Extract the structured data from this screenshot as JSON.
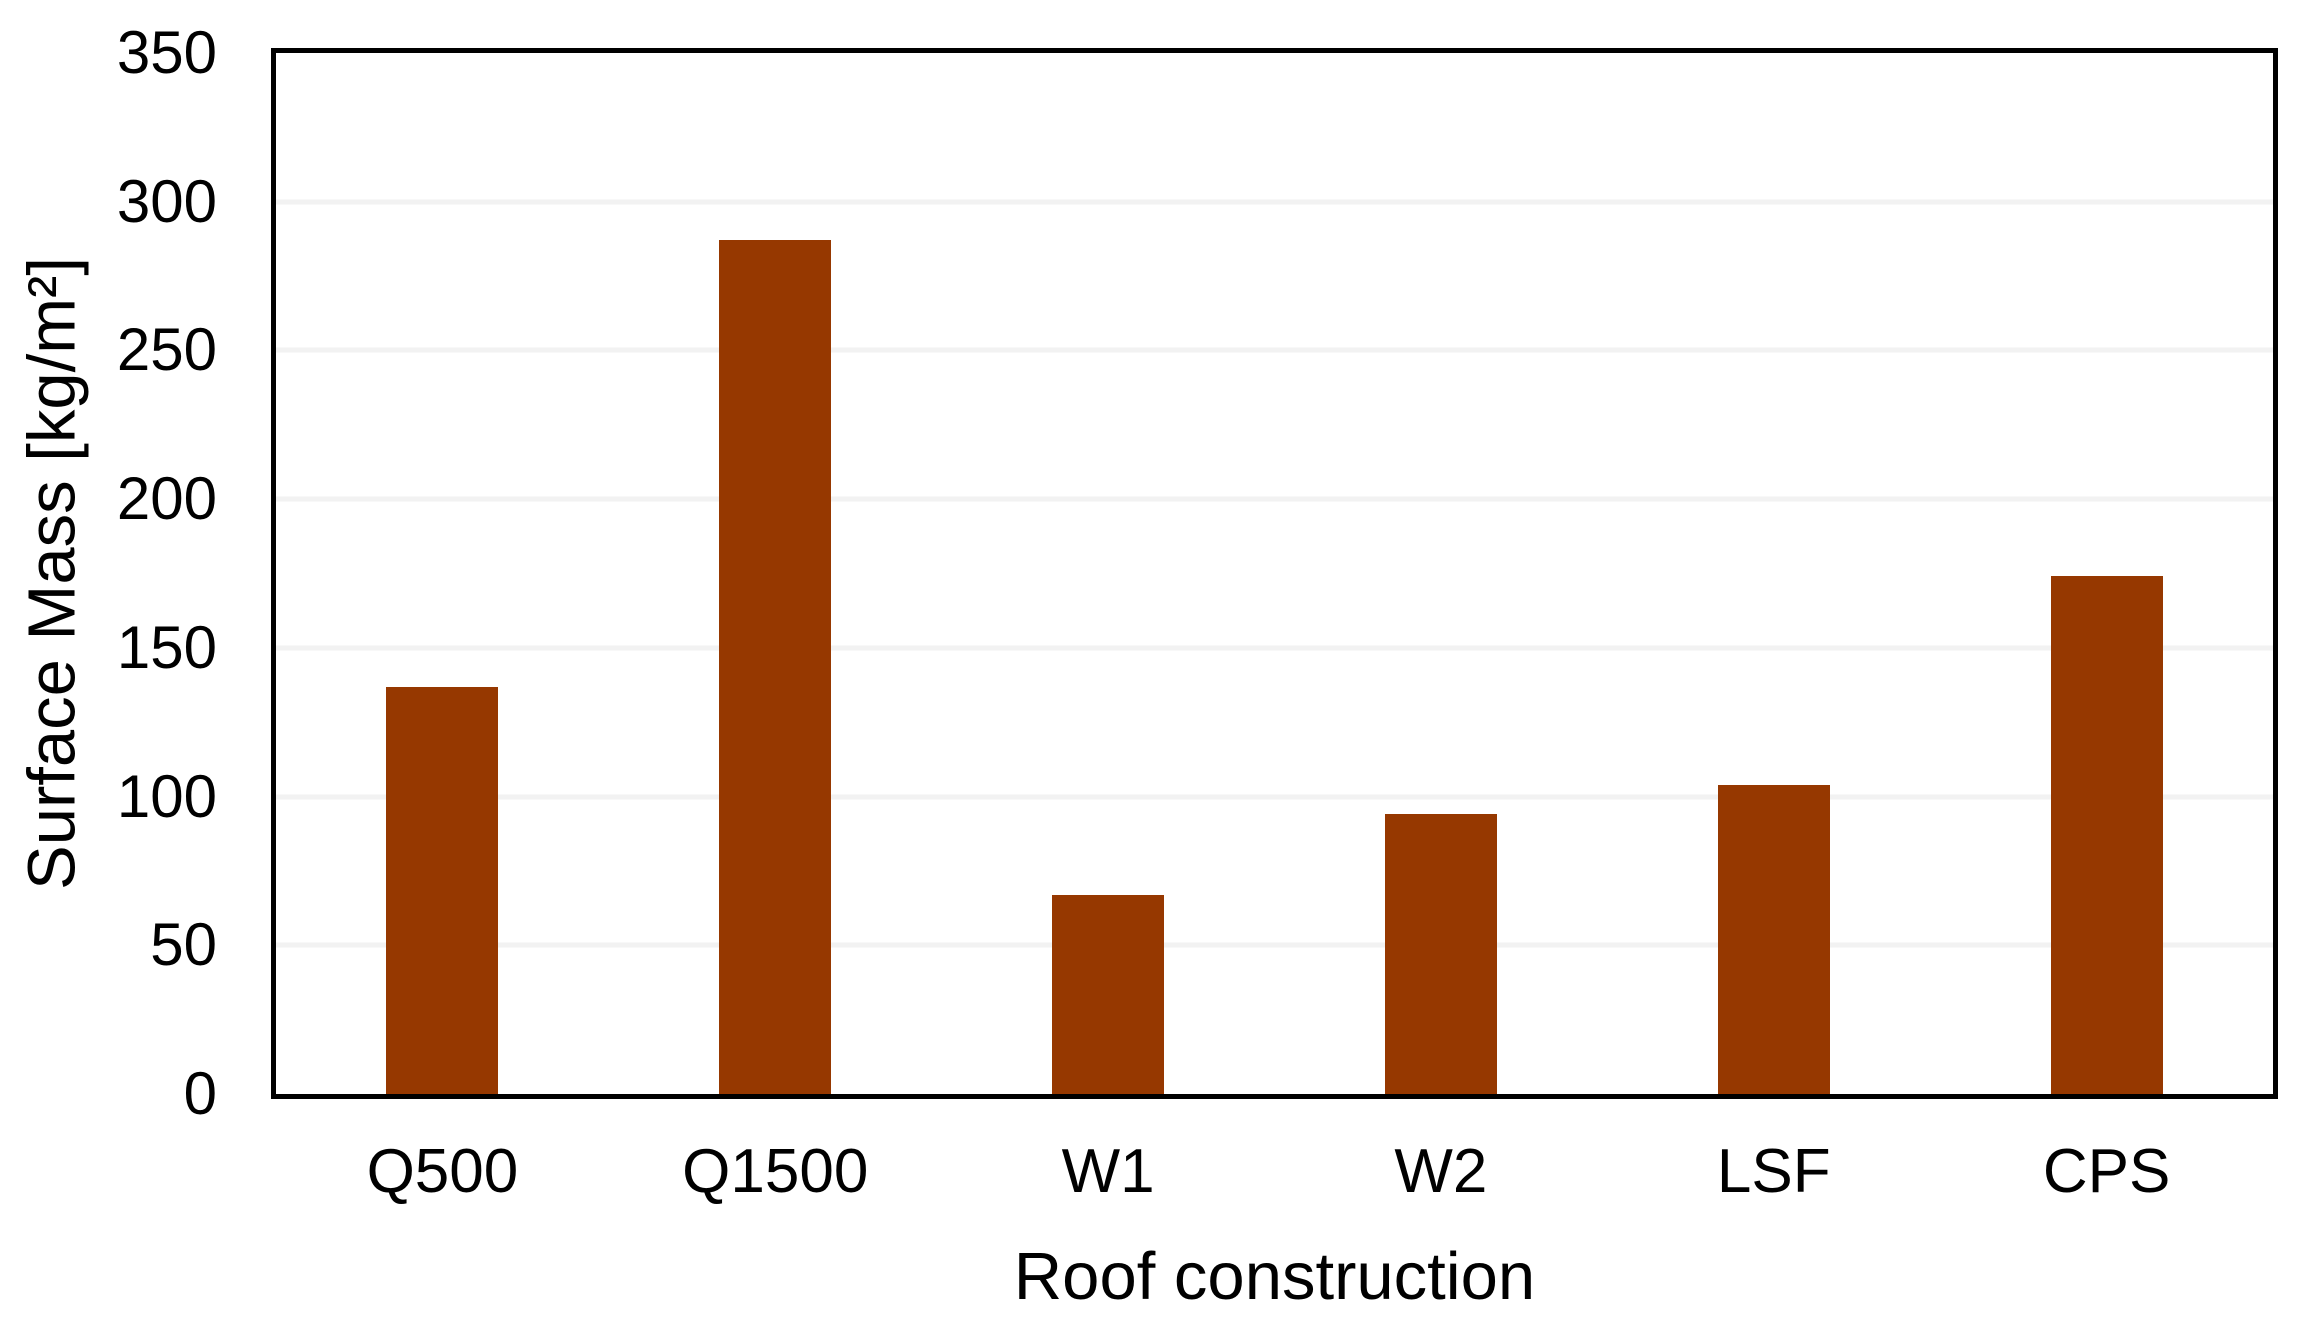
{
  "chart_data": {
    "type": "bar",
    "title": "",
    "categories": [
      "Q500",
      "Q1500",
      "W1",
      "W2",
      "LSF",
      "CPS"
    ],
    "values": [
      137,
      287,
      67,
      94,
      104,
      174
    ],
    "xlabel": "Roof construction",
    "ylabel": "Surface Mass [kg/m²]",
    "ylim": [
      0,
      350
    ],
    "ytick_step": 50,
    "yticks": [
      0,
      50,
      100,
      150,
      200,
      250,
      300,
      350
    ],
    "legend": "none",
    "grid": "horizontal",
    "plot_border": "full-box",
    "colors": {
      "bar_fill": "#963800",
      "gridline": "#F2F2F2",
      "axis_line": "#000000",
      "text": "#000000",
      "background": "#FFFFFF"
    }
  }
}
